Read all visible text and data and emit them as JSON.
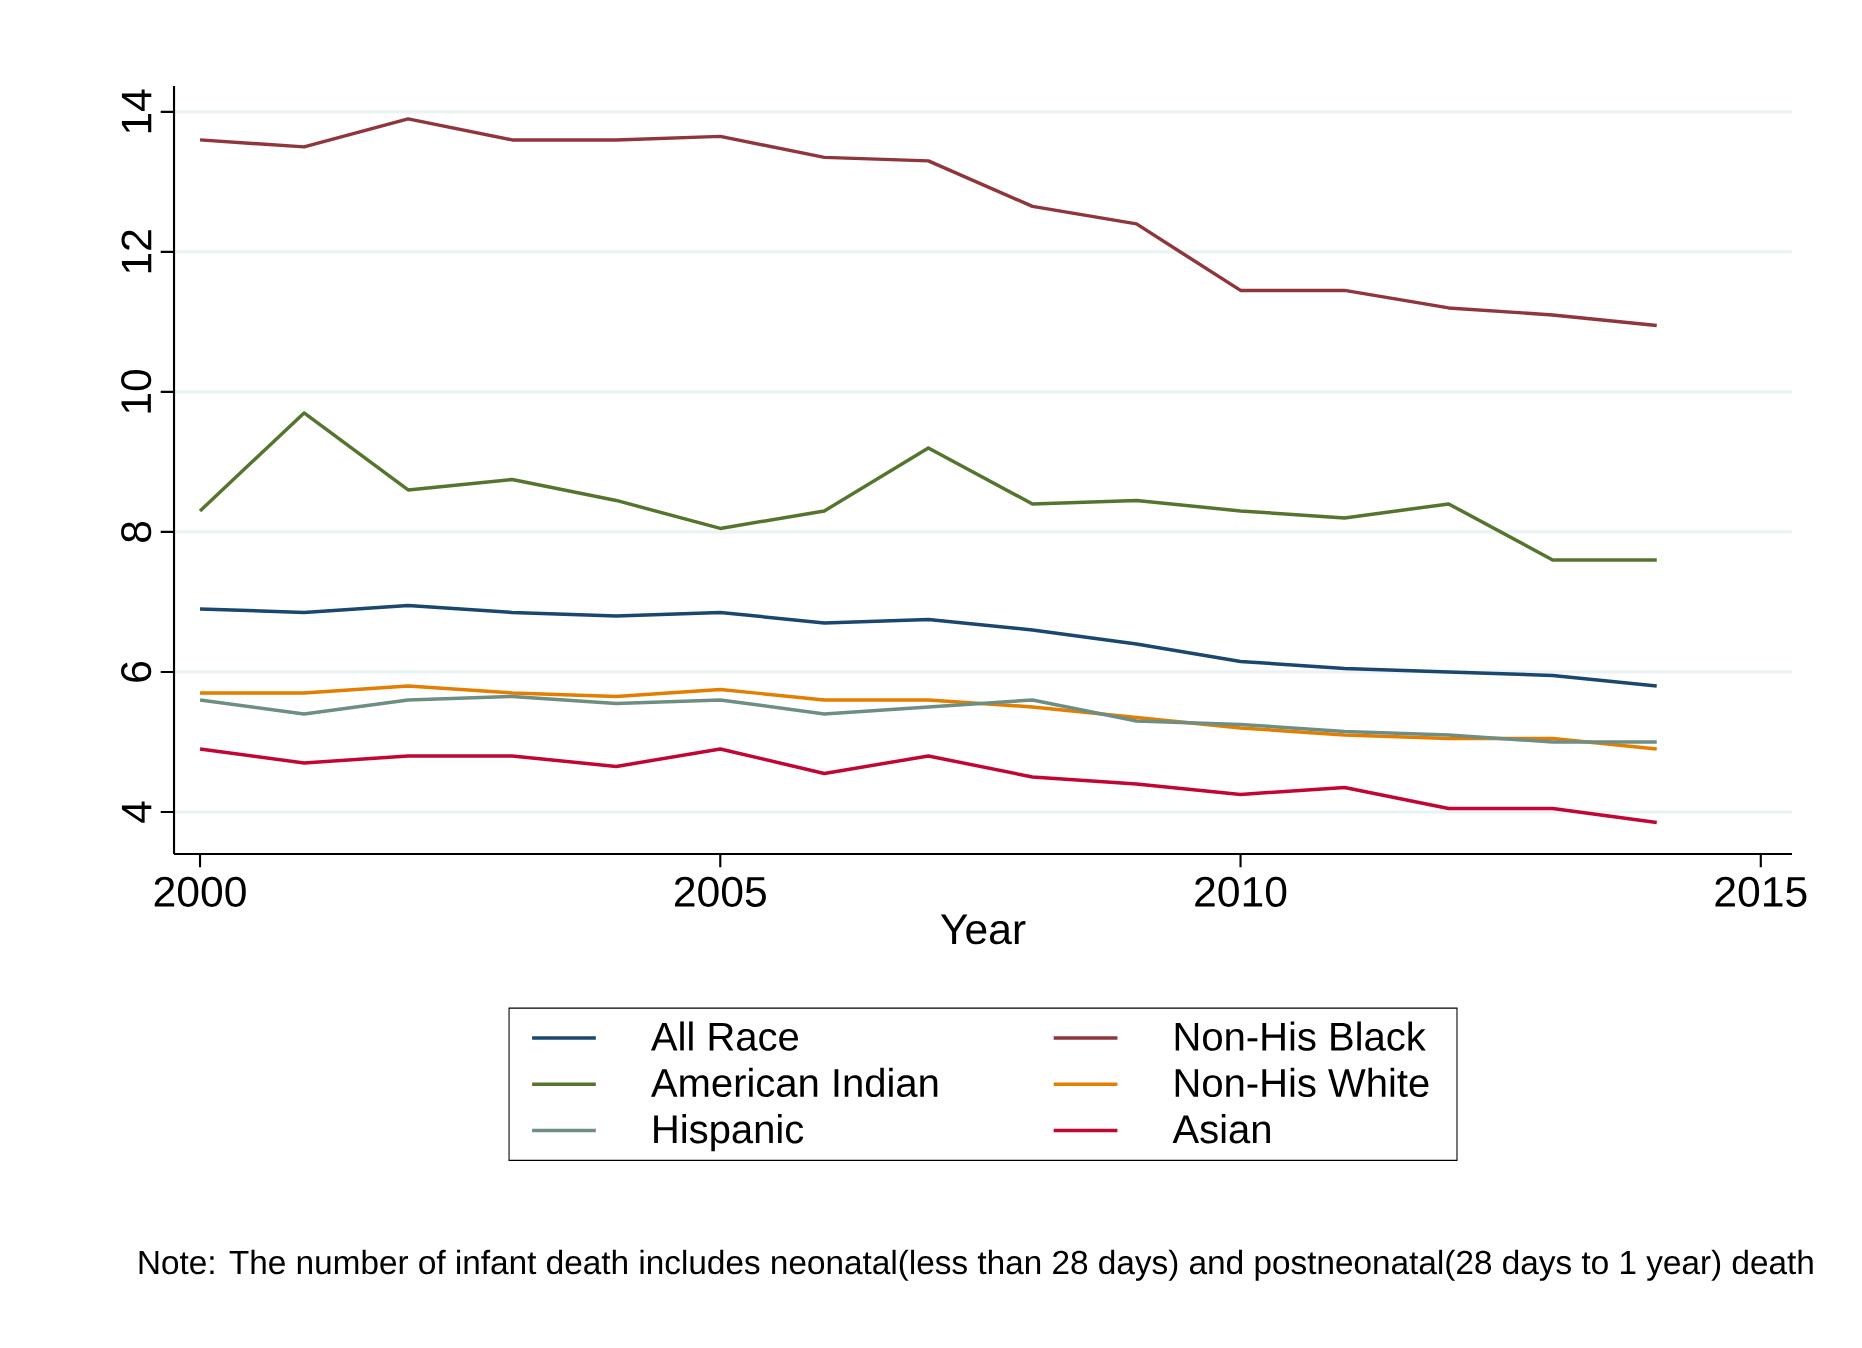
{
  "chart_data": {
    "type": "line",
    "xlabel": "Year",
    "x": [
      2000,
      2001,
      2002,
      2003,
      2004,
      2005,
      2006,
      2007,
      2008,
      2009,
      2010,
      2011,
      2012,
      2013,
      2014
    ],
    "series": [
      {
        "name": "All Race",
        "color": "#1a476f",
        "values": [
          6.9,
          6.85,
          6.95,
          6.85,
          6.8,
          6.85,
          6.7,
          6.75,
          6.6,
          6.4,
          6.15,
          6.05,
          6.0,
          5.95,
          5.8
        ]
      },
      {
        "name": "Non-His Black",
        "color": "#90353b",
        "values": [
          13.6,
          13.5,
          13.9,
          13.6,
          13.6,
          13.65,
          13.35,
          13.3,
          12.65,
          12.4,
          11.45,
          11.45,
          11.2,
          11.1,
          10.95
        ]
      },
      {
        "name": "American Indian",
        "color": "#55752f",
        "values": [
          8.3,
          9.7,
          8.6,
          8.75,
          8.45,
          8.05,
          8.3,
          9.2,
          8.4,
          8.45,
          8.3,
          8.2,
          8.4,
          7.6,
          7.6
        ]
      },
      {
        "name": "Non-His White",
        "color": "#e37e00",
        "values": [
          5.7,
          5.7,
          5.8,
          5.7,
          5.65,
          5.75,
          5.6,
          5.6,
          5.5,
          5.35,
          5.2,
          5.1,
          5.05,
          5.05,
          4.9
        ]
      },
      {
        "name": "Hispanic",
        "color": "#6e8e84",
        "values": [
          5.6,
          5.4,
          5.6,
          5.65,
          5.55,
          5.6,
          5.4,
          5.5,
          5.6,
          5.3,
          5.25,
          5.15,
          5.1,
          5.0,
          5.0
        ]
      },
      {
        "name": "Asian",
        "color": "#c10534",
        "values": [
          4.9,
          4.7,
          4.8,
          4.8,
          4.65,
          4.9,
          4.55,
          4.8,
          4.5,
          4.4,
          4.25,
          4.35,
          4.05,
          4.05,
          3.85
        ]
      }
    ],
    "xlim": [
      1999.75,
      2015.3
    ],
    "ylim": [
      3.4,
      14.37
    ],
    "xticks": [
      2000,
      2005,
      2010,
      2015
    ],
    "yticks": [
      4,
      6,
      8,
      10,
      12,
      14
    ],
    "grid": "y",
    "legend": "bottom",
    "line_style": "solid",
    "annotations": [
      "Note: The number of infant death includes neonatal(less than 28 days) and postneonatal(28 days to 1 year) death"
    ]
  }
}
